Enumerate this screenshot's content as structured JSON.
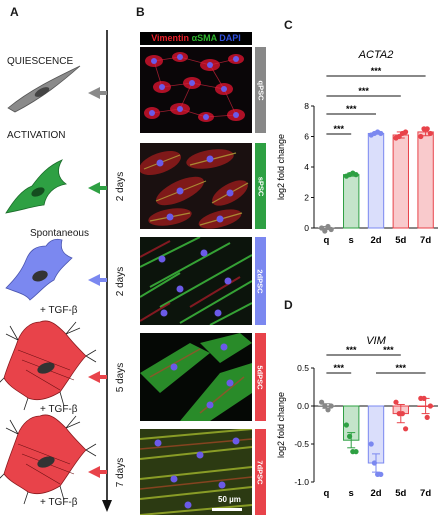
{
  "panel_a": {
    "letter": "A",
    "quiescence": "QUIESCENCE",
    "activation": "ACTIVATION",
    "spontaneous": "Spontaneous",
    "tgf": "+ TGF-β"
  },
  "panel_b": {
    "letter": "B",
    "legend": [
      {
        "text": "Vimentin",
        "color": "#e8202a"
      },
      {
        "text": "αSMA",
        "color": "#2fb52f"
      },
      {
        "text": "DAPI",
        "color": "#3050e0"
      }
    ],
    "rows": [
      {
        "label": "qPSC",
        "color": "#888888",
        "days": ""
      },
      {
        "label": "sPSC",
        "color": "#2ea043",
        "days": "2 days"
      },
      {
        "label": "2dPSC",
        "color": "#7b88f0",
        "days": "2 days"
      },
      {
        "label": "5dPSC",
        "color": "#e8434a",
        "days": "5 days"
      },
      {
        "label": "7dPSC",
        "color": "#e8434a",
        "days": "7 days"
      }
    ],
    "scale_bar": "50 µm"
  },
  "panel_c": {
    "letter": "C"
  },
  "panel_d": {
    "letter": "D"
  },
  "chart_data": [
    {
      "type": "bar",
      "title": "ACTA2",
      "ylabel": "log2 fold change",
      "categories": [
        "q",
        "s",
        "2d",
        "5d",
        "7d"
      ],
      "values": [
        0,
        3.5,
        6.2,
        6.1,
        6.3
      ],
      "errors": [
        0.1,
        0.1,
        0.05,
        0.2,
        0.25
      ],
      "points": [
        [
          0.0,
          -0.2,
          0.1,
          -0.1
        ],
        [
          3.4,
          3.5,
          3.6,
          3.5
        ],
        [
          6.1,
          6.2,
          6.3,
          6.2
        ],
        [
          5.9,
          6.0,
          6.2,
          6.3
        ],
        [
          6.0,
          6.5,
          6.5,
          6.2
        ]
      ],
      "colors": [
        "#888888",
        "#2ea043",
        "#7b88f0",
        "#e8434a",
        "#e8434a"
      ],
      "ylim": [
        0,
        8
      ],
      "yticks": [
        0,
        2,
        4,
        6,
        8
      ],
      "significance": [
        {
          "from": 0,
          "to": 1,
          "label": "***"
        },
        {
          "from": 0,
          "to": 2,
          "label": "***"
        },
        {
          "from": 0,
          "to": 3,
          "label": "***"
        },
        {
          "from": 0,
          "to": 4,
          "label": "***"
        }
      ]
    },
    {
      "type": "bar",
      "title": "VIM",
      "ylabel": "log2 fold change",
      "categories": [
        "q",
        "s",
        "2d",
        "5d",
        "7d"
      ],
      "values": [
        0,
        -0.45,
        -0.75,
        -0.1,
        0
      ],
      "errors": [
        0.03,
        0.1,
        0.12,
        0.12,
        0.1
      ],
      "points": [
        [
          0.05,
          0.0,
          -0.05,
          0.0
        ],
        [
          -0.25,
          -0.4,
          -0.6,
          -0.6
        ],
        [
          -0.5,
          -0.75,
          -0.9,
          -0.9
        ],
        [
          0.05,
          -0.1,
          -0.1,
          -0.3
        ],
        [
          0.1,
          0.1,
          -0.15,
          0.0
        ]
      ],
      "colors": [
        "#888888",
        "#2ea043",
        "#7b88f0",
        "#e8434a",
        "#e8434a"
      ],
      "ylim": [
        -1.0,
        0.5
      ],
      "yticks": [
        -1.0,
        -0.5,
        0.0,
        0.5
      ],
      "significance": [
        {
          "from": 0,
          "to": 1,
          "label": "***"
        },
        {
          "from": 0,
          "to": 2,
          "label": "***"
        },
        {
          "from": 2,
          "to": 3,
          "label": "***"
        },
        {
          "from": 2,
          "to": 4,
          "label": "***"
        }
      ]
    }
  ]
}
